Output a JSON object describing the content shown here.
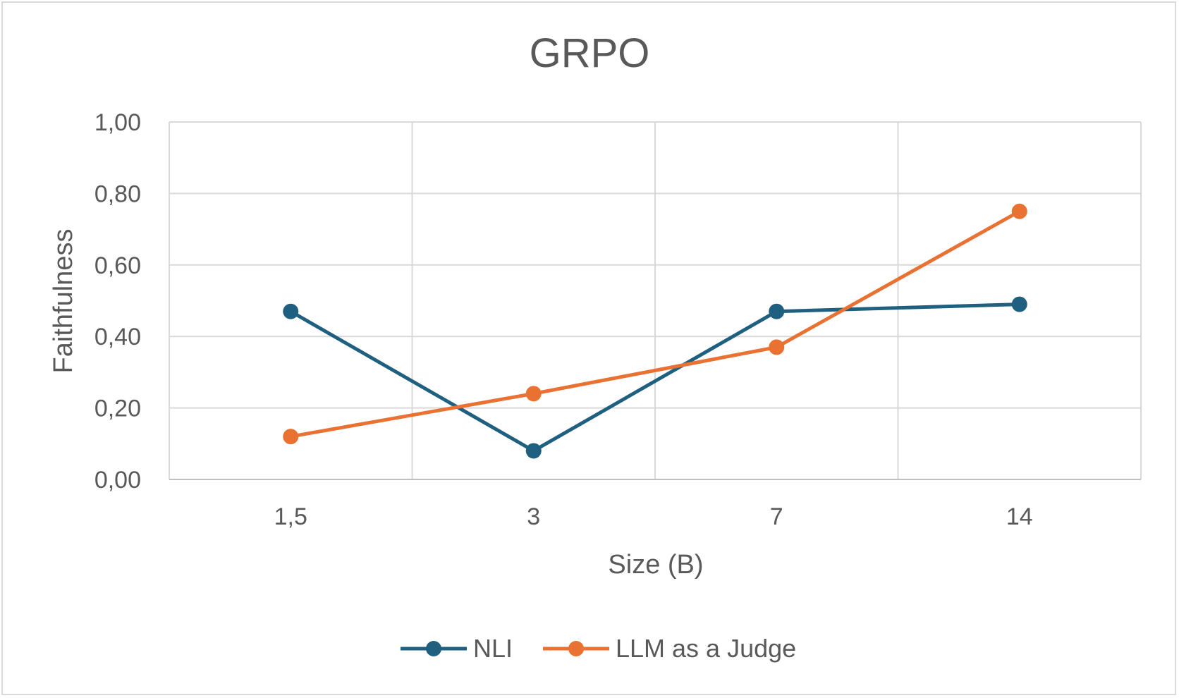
{
  "chart_data": {
    "type": "line",
    "title": "GRPO",
    "xlabel": "Size (B)",
    "ylabel": "Faithfulness",
    "categories": [
      "1,5",
      "3",
      "7",
      "14"
    ],
    "ylim": [
      0,
      1
    ],
    "y_ticks": [
      "0,00",
      "0,20",
      "0,40",
      "0,60",
      "0,80",
      "1,00"
    ],
    "grid": true,
    "legend_position": "bottom",
    "series": [
      {
        "name": "NLI",
        "values": [
          0.47,
          0.08,
          0.47,
          0.49
        ],
        "color": "#1f5f7f"
      },
      {
        "name": "LLM as a Judge",
        "values": [
          0.12,
          0.24,
          0.37,
          0.75
        ],
        "color": "#e97132"
      }
    ]
  }
}
